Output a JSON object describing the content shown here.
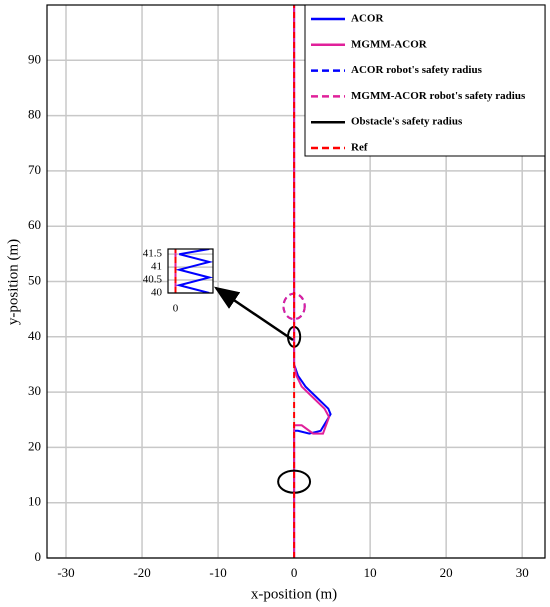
{
  "chart_data": [
    {
      "type": "line",
      "xlabel": "x-position (m)",
      "ylabel": "y-position (m)",
      "xlim": [
        -32.5,
        33
      ],
      "ylim": [
        0,
        100
      ],
      "xticks": [
        -30,
        -20,
        -10,
        0,
        10,
        20,
        30
      ],
      "yticks": [
        0,
        10,
        20,
        30,
        40,
        50,
        60,
        70,
        80,
        90
      ],
      "grid": true,
      "legend": "upper right",
      "series": [
        {
          "name": "ACOR",
          "color": "#0000ff",
          "dash": false,
          "x": [
            0,
            0,
            0.5,
            2,
            3.5,
            4.8,
            4.5,
            3,
            1.5,
            0.5,
            0,
            0
          ],
          "y": [
            0,
            23,
            23,
            22.5,
            23,
            26,
            27,
            29,
            31,
            33,
            35,
            100
          ]
        },
        {
          "name": "MGMM-ACOR",
          "color": "#e0209a",
          "dash": false,
          "x": [
            0,
            0,
            1,
            2.5,
            3.8,
            4.6,
            4,
            2.5,
            1,
            0.3,
            0,
            0
          ],
          "y": [
            0,
            24,
            24,
            22.5,
            22.5,
            25.5,
            27,
            29,
            31,
            33,
            35,
            100
          ]
        },
        {
          "name": "ACOR robot's safety radius",
          "color": "#0000ff",
          "dash": true,
          "ellipses": [
            {
              "x": 0,
              "y": 45.5,
              "rx": 1.4,
              "ry": 2.3
            }
          ]
        },
        {
          "name": "MGMM-ACOR  robot's safety radius",
          "color": "#e0209a",
          "dash": true,
          "ellipses": [
            {
              "x": 0,
              "y": 45.5,
              "rx": 1.4,
              "ry": 2.3
            }
          ]
        },
        {
          "name": "Obstacle's safety radius",
          "color": "#000000",
          "dash": false,
          "ellipses": [
            {
              "x": 0,
              "y": 40,
              "rx": 0.8,
              "ry": 1.8
            },
            {
              "x": 0,
              "y": 13.8,
              "rx": 2.1,
              "ry": 2
            }
          ]
        },
        {
          "name": "Ref",
          "color": "#ff0000",
          "dash": true,
          "x": [
            0,
            0
          ],
          "y": [
            0,
            100
          ]
        }
      ]
    },
    {
      "type": "line",
      "xlim": [
        -0.1,
        0.5
      ],
      "ylim": [
        40,
        41.7
      ],
      "xticks": [
        0
      ],
      "yticks": [
        40,
        40.5,
        41,
        41.5
      ],
      "grid": true,
      "series": [
        {
          "color": "#0000ff",
          "dash": false,
          "x": [
            0.45,
            0.05,
            0.45,
            0.05,
            0.45,
            0.05,
            0.45
          ],
          "y": [
            40,
            40.3,
            40.6,
            40.9,
            41.2,
            41.5,
            41.7
          ]
        },
        {
          "color": "#e0209a",
          "dash": false,
          "x": [
            0,
            0
          ],
          "y": [
            40,
            41.7
          ]
        },
        {
          "color": "#ff0000",
          "dash": true,
          "x": [
            0,
            0
          ],
          "y": [
            40,
            41.7
          ]
        }
      ]
    }
  ]
}
